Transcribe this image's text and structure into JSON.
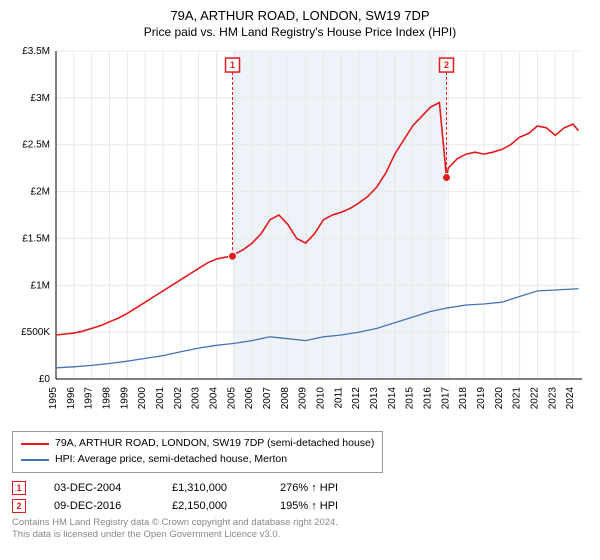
{
  "title": "79A, ARTHUR ROAD, LONDON, SW19 7DP",
  "subtitle": "Price paid vs. HM Land Registry's House Price Index (HPI)",
  "chart": {
    "type": "line",
    "background_color": "#ffffff",
    "grid_color": "#e8e8e8",
    "axis_color": "#000000",
    "highlight_band_color": "#eef3f9",
    "highlight_band_x": [
      2004.9,
      2016.9
    ],
    "xlim": [
      1995,
      2024.5
    ],
    "ylim": [
      0,
      3500000
    ],
    "ytick_step": 500000,
    "ytick_labels": [
      "£0",
      "£500K",
      "£1M",
      "£1.5M",
      "£2M",
      "£2.5M",
      "£3M",
      "£3.5M"
    ],
    "xtick_step": 1,
    "xtick_labels": [
      "1995",
      "1996",
      "1997",
      "1998",
      "1999",
      "2000",
      "2001",
      "2002",
      "2003",
      "2004",
      "2005",
      "2006",
      "2007",
      "2008",
      "2009",
      "2010",
      "2011",
      "2012",
      "2013",
      "2014",
      "2015",
      "2016",
      "2017",
      "2018",
      "2019",
      "2020",
      "2021",
      "2022",
      "2023",
      "2024"
    ],
    "series": [
      {
        "name": "property_price",
        "label": "79A, ARTHUR ROAD, LONDON, SW19 7DP (semi-detached house)",
        "color": "#e31a1c",
        "line_width": 1.6,
        "x": [
          1995,
          1995.5,
          1996,
          1996.5,
          1997,
          1997.5,
          1998,
          1998.5,
          1999,
          1999.5,
          2000,
          2000.5,
          2001,
          2001.5,
          2002,
          2002.5,
          2003,
          2003.5,
          2004,
          2004.5,
          2004.9,
          2005,
          2005.5,
          2006,
          2006.5,
          2007,
          2007.5,
          2008,
          2008.5,
          2009,
          2009.5,
          2010,
          2010.5,
          2011,
          2011.5,
          2012,
          2012.5,
          2013,
          2013.5,
          2014,
          2014.5,
          2015,
          2015.5,
          2016,
          2016.5,
          2016.9,
          2017,
          2017.5,
          2018,
          2018.5,
          2019,
          2019.5,
          2020,
          2020.5,
          2021,
          2021.5,
          2022,
          2022.5,
          2023,
          2023.5,
          2024,
          2024.3
        ],
        "y": [
          470000,
          480000,
          490000,
          510000,
          540000,
          570000,
          610000,
          650000,
          700000,
          760000,
          820000,
          880000,
          940000,
          1000000,
          1060000,
          1120000,
          1180000,
          1240000,
          1280000,
          1300000,
          1310000,
          1330000,
          1380000,
          1450000,
          1550000,
          1700000,
          1750000,
          1650000,
          1500000,
          1450000,
          1550000,
          1700000,
          1750000,
          1780000,
          1820000,
          1880000,
          1950000,
          2050000,
          2200000,
          2400000,
          2550000,
          2700000,
          2800000,
          2900000,
          2950000,
          2150000,
          2250000,
          2350000,
          2400000,
          2420000,
          2400000,
          2420000,
          2450000,
          2500000,
          2580000,
          2620000,
          2700000,
          2680000,
          2600000,
          2680000,
          2720000,
          2650000
        ]
      },
      {
        "name": "hpi",
        "label": "HPI: Average price, semi-detached house, Merton",
        "color": "#4575b4",
        "line_width": 1.3,
        "x": [
          1995,
          1996,
          1997,
          1998,
          1999,
          2000,
          2001,
          2002,
          2003,
          2004,
          2005,
          2006,
          2007,
          2008,
          2009,
          2010,
          2011,
          2012,
          2013,
          2014,
          2015,
          2016,
          2017,
          2018,
          2019,
          2020,
          2021,
          2022,
          2023,
          2024,
          2024.3
        ],
        "y": [
          120000,
          130000,
          145000,
          165000,
          190000,
          220000,
          250000,
          290000,
          330000,
          360000,
          380000,
          410000,
          450000,
          430000,
          410000,
          450000,
          470000,
          500000,
          540000,
          600000,
          660000,
          720000,
          760000,
          790000,
          800000,
          820000,
          880000,
          940000,
          950000,
          960000,
          965000
        ]
      }
    ],
    "markers": [
      {
        "n": "1",
        "x": 2004.9,
        "y": 1310000,
        "flag_y": 3350000,
        "color": "#e31a1c"
      },
      {
        "n": "2",
        "x": 2016.9,
        "y": 2150000,
        "flag_y": 3350000,
        "color": "#e31a1c"
      }
    ]
  },
  "legend": {
    "items": [
      {
        "color": "#e31a1c",
        "label": "79A, ARTHUR ROAD, LONDON, SW19 7DP (semi-detached house)"
      },
      {
        "color": "#4575b4",
        "label": "HPI: Average price, semi-detached house, Merton"
      }
    ]
  },
  "sales": [
    {
      "n": "1",
      "date": "03-DEC-2004",
      "price": "£1,310,000",
      "hpi": "276% ↑ HPI"
    },
    {
      "n": "2",
      "date": "09-DEC-2016",
      "price": "£2,150,000",
      "hpi": "195% ↑ HPI"
    }
  ],
  "footer": {
    "line1": "Contains HM Land Registry data © Crown copyright and database right 2024.",
    "line2": "This data is licensed under the Open Government Licence v3.0."
  },
  "marker_border_color": "#e31a1c"
}
